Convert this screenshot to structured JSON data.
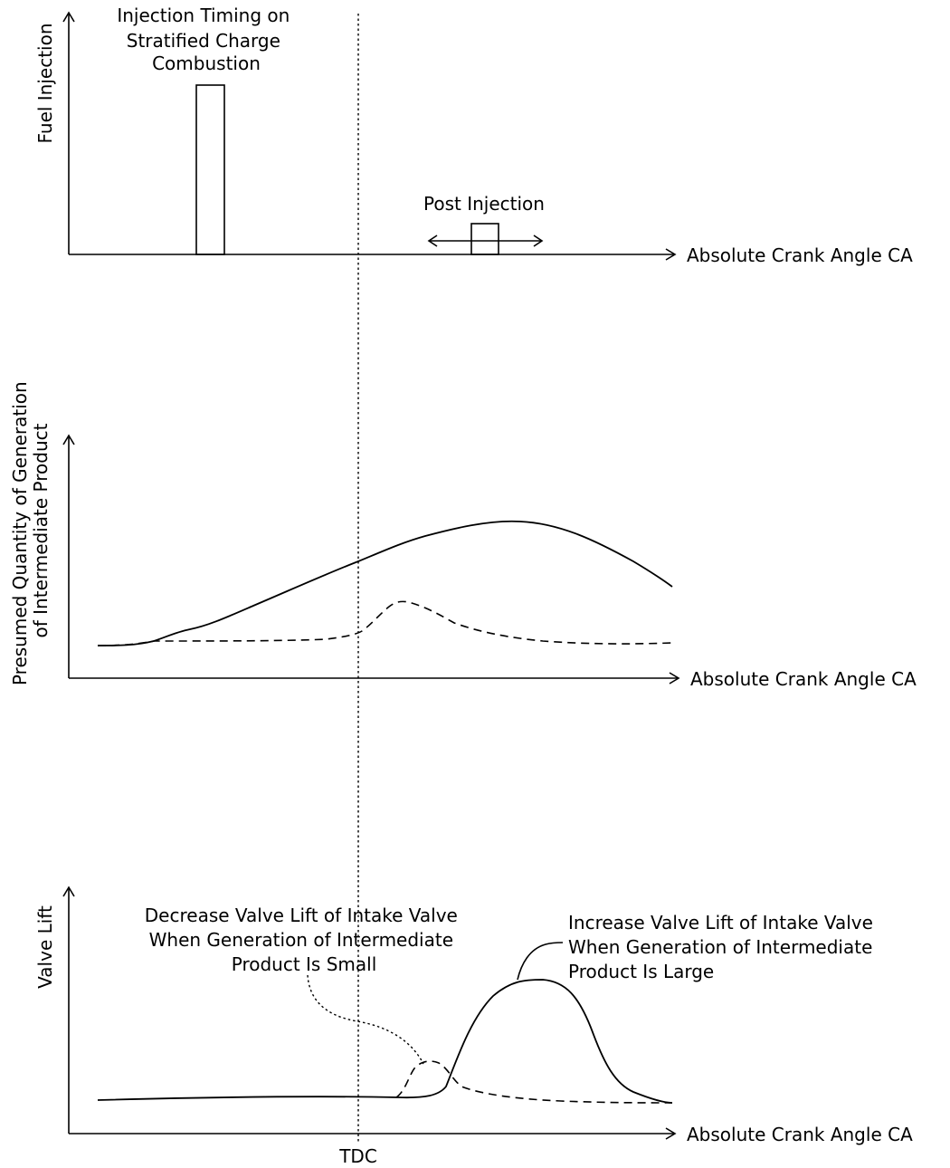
{
  "panel1": {
    "ylabel": "Fuel Injection",
    "xlabel": "Absolute Crank Angle CA",
    "main_injection_label": [
      "Injection Timing on",
      "Stratified Charge",
      "Combustion"
    ],
    "post_injection_label": "Post Injection"
  },
  "panel2": {
    "ylabel": [
      "Presumed Quantity of Generation",
      "of Intermediate Product"
    ],
    "xlabel": "Absolute Crank Angle CA"
  },
  "panel3": {
    "ylabel": "Valve Lift",
    "xlabel": "Absolute Crank Angle CA",
    "decrease_label": [
      "Decrease Valve Lift of Intake Valve",
      "When Generation of Intermediate",
      "Product Is Small"
    ],
    "increase_label": [
      "Increase Valve Lift of Intake Valve",
      "When Generation of Intermediate",
      "Product Is Large"
    ]
  },
  "tdc_label": "TDC"
}
